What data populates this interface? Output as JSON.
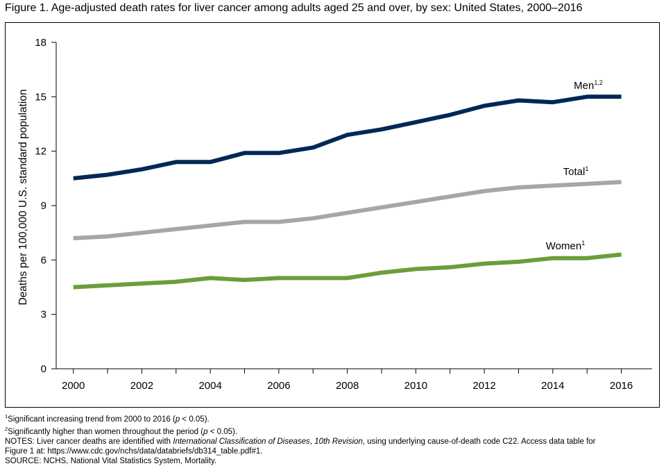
{
  "title": "Figure 1. Age-adjusted death rates for liver cancer among adults aged 25 and over, by sex: United States, 2000–2016",
  "chart_data": {
    "type": "line",
    "ylabel": "Deaths per 100,000 U.S. standard population",
    "xlabel": "",
    "xlim": [
      1999.5,
      2016.9
    ],
    "ylim": [
      0,
      18
    ],
    "yticks": [
      0,
      3,
      6,
      9,
      12,
      15,
      18
    ],
    "xticks": [
      2000,
      2002,
      2004,
      2006,
      2008,
      2010,
      2012,
      2014,
      2016
    ],
    "grid": false,
    "x": [
      2000,
      2001,
      2002,
      2003,
      2004,
      2005,
      2006,
      2007,
      2008,
      2009,
      2010,
      2011,
      2012,
      2013,
      2014,
      2015,
      2016
    ],
    "series": [
      {
        "name": "Men",
        "sup": "1,2",
        "color": "#002855",
        "values": [
          10.5,
          10.7,
          11.0,
          11.4,
          11.4,
          11.9,
          11.9,
          12.2,
          12.9,
          13.2,
          13.6,
          14.0,
          14.5,
          14.8,
          14.7,
          15.0,
          15.0
        ]
      },
      {
        "name": "Total",
        "sup": "1",
        "color": "#a6a6a6",
        "values": [
          7.2,
          7.3,
          7.5,
          7.7,
          7.9,
          8.1,
          8.1,
          8.3,
          8.6,
          8.9,
          9.2,
          9.5,
          9.8,
          10.0,
          10.1,
          10.2,
          10.3
        ]
      },
      {
        "name": "Women",
        "sup": "1",
        "color": "#6a9e3a",
        "values": [
          4.5,
          4.6,
          4.7,
          4.8,
          5.0,
          4.9,
          5.0,
          5.0,
          5.0,
          5.3,
          5.5,
          5.6,
          5.8,
          5.9,
          6.1,
          6.1,
          6.3
        ]
      }
    ]
  },
  "notes": {
    "n1_sup": "1",
    "n1_text": "Significant increasing trend from 2000 to 2016 (",
    "n1_p": "p",
    "n1_end": " < 0.05).",
    "n2_sup": "2",
    "n2_text": "Significantly higher than women throughout the period (",
    "n2_p": "p",
    "n2_end": " < 0.05).",
    "n3_a": "NOTES: Liver cancer deaths are identified with ",
    "n3_italic": "International Classification of Diseases",
    "n3_b": ", ",
    "n3_c": "10th Revision",
    "n3_d": ", using underlying cause-of-death code C22. Access data table for",
    "n4": "Figure 1 at: https://www.cdc.gov/nchs/data/databriefs/db314_table.pdf#1.",
    "n5": "SOURCE: NCHS, National Vital Statistics System, Mortality."
  }
}
